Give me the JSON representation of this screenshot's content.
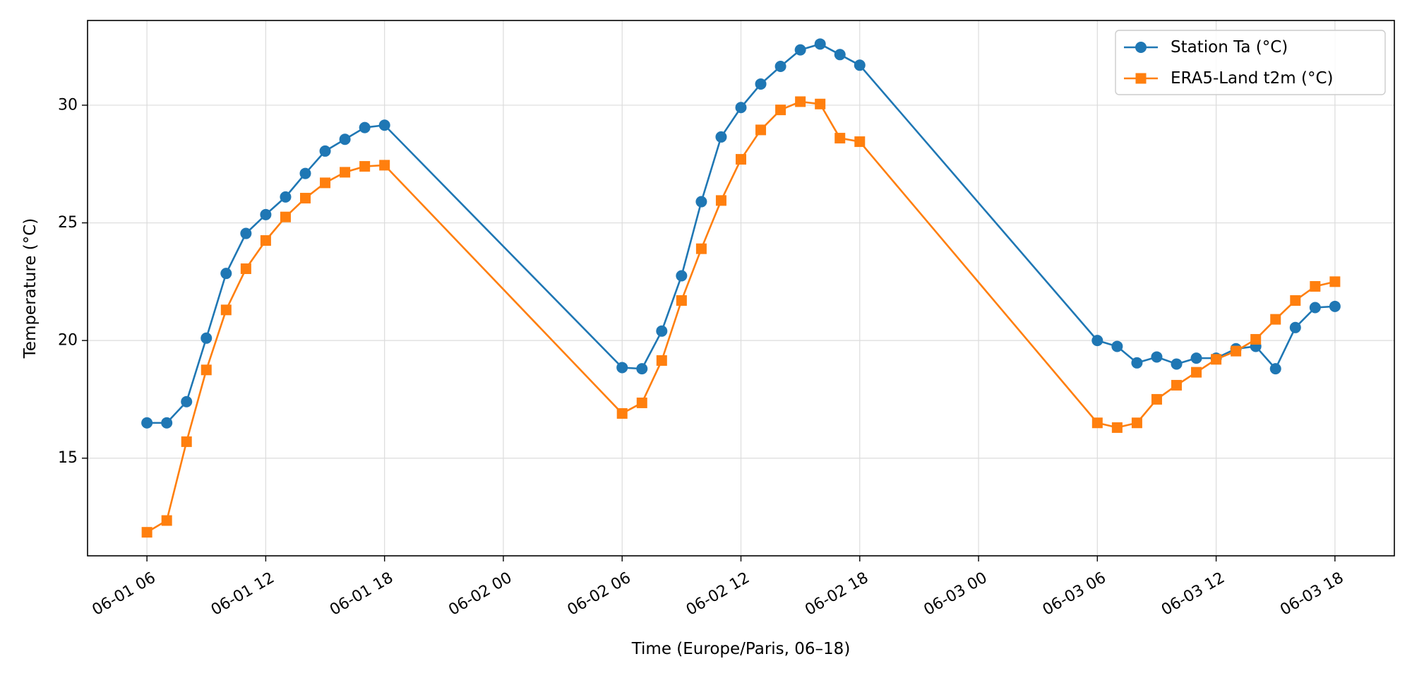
{
  "chart_data": {
    "type": "line",
    "title": "",
    "xlabel": "Time (Europe/Paris, 06–18)",
    "ylabel": "Temperature (°C)",
    "x_unit": "hours",
    "x_ticks": [
      {
        "value": 0,
        "label": "06-01 06"
      },
      {
        "value": 6,
        "label": "06-01 12"
      },
      {
        "value": 12,
        "label": "06-01 18"
      },
      {
        "value": 18,
        "label": "06-02 00"
      },
      {
        "value": 24,
        "label": "06-02 06"
      },
      {
        "value": 30,
        "label": "06-02 12"
      },
      {
        "value": 36,
        "label": "06-02 18"
      },
      {
        "value": 42,
        "label": "06-03 00"
      },
      {
        "value": 48,
        "label": "06-03 06"
      },
      {
        "value": 54,
        "label": "06-03 12"
      },
      {
        "value": 60,
        "label": "06-03 18"
      }
    ],
    "y_ticks": [
      15,
      20,
      25,
      30
    ],
    "xlim": [
      -3,
      63
    ],
    "ylim": [
      10.85,
      33.6
    ],
    "grid": true,
    "legend_position": "top-right",
    "series": [
      {
        "name": "Station Ta (°C)",
        "color": "#1f77b4",
        "marker": "circle",
        "points": [
          [
            0,
            16.5
          ],
          [
            1,
            16.5
          ],
          [
            2,
            17.4
          ],
          [
            3,
            20.1
          ],
          [
            4,
            22.85
          ],
          [
            5,
            24.55
          ],
          [
            6,
            25.35
          ],
          [
            7,
            26.1
          ],
          [
            8,
            27.1
          ],
          [
            9,
            28.05
          ],
          [
            10,
            28.55
          ],
          [
            11,
            29.05
          ],
          [
            12,
            29.15
          ],
          [
            24,
            18.85
          ],
          [
            25,
            18.8
          ],
          [
            26,
            20.4
          ],
          [
            27,
            22.75
          ],
          [
            28,
            25.9
          ],
          [
            29,
            28.65
          ],
          [
            30,
            29.9
          ],
          [
            31,
            30.9
          ],
          [
            32,
            31.65
          ],
          [
            33,
            32.35
          ],
          [
            34,
            32.6
          ],
          [
            35,
            32.15
          ],
          [
            36,
            31.7
          ],
          [
            48,
            20.0
          ],
          [
            49,
            19.75
          ],
          [
            50,
            19.05
          ],
          [
            51,
            19.3
          ],
          [
            52,
            19.0
          ],
          [
            53,
            19.25
          ],
          [
            54,
            19.25
          ],
          [
            55,
            19.65
          ],
          [
            56,
            19.75
          ],
          [
            57,
            18.8
          ],
          [
            58,
            20.55
          ],
          [
            59,
            21.4
          ],
          [
            60,
            21.45
          ]
        ]
      },
      {
        "name": "ERA5-Land t2m (°C)",
        "color": "#ff7f0e",
        "marker": "square",
        "points": [
          [
            0,
            11.85
          ],
          [
            1,
            12.35
          ],
          [
            2,
            15.7
          ],
          [
            3,
            18.75
          ],
          [
            4,
            21.3
          ],
          [
            5,
            23.05
          ],
          [
            6,
            24.25
          ],
          [
            7,
            25.25
          ],
          [
            8,
            26.05
          ],
          [
            9,
            26.7
          ],
          [
            10,
            27.15
          ],
          [
            11,
            27.4
          ],
          [
            12,
            27.45
          ],
          [
            24,
            16.9
          ],
          [
            25,
            17.35
          ],
          [
            26,
            19.15
          ],
          [
            27,
            21.7
          ],
          [
            28,
            23.9
          ],
          [
            29,
            25.95
          ],
          [
            30,
            27.7
          ],
          [
            31,
            28.95
          ],
          [
            32,
            29.8
          ],
          [
            33,
            30.15
          ],
          [
            34,
            30.05
          ],
          [
            35,
            28.6
          ],
          [
            36,
            28.45
          ],
          [
            48,
            16.5
          ],
          [
            49,
            16.3
          ],
          [
            50,
            16.5
          ],
          [
            51,
            17.5
          ],
          [
            52,
            18.1
          ],
          [
            53,
            18.65
          ],
          [
            54,
            19.2
          ],
          [
            55,
            19.55
          ],
          [
            56,
            20.05
          ],
          [
            57,
            20.9
          ],
          [
            58,
            21.7
          ],
          [
            59,
            22.3
          ],
          [
            60,
            22.5
          ]
        ]
      }
    ]
  }
}
